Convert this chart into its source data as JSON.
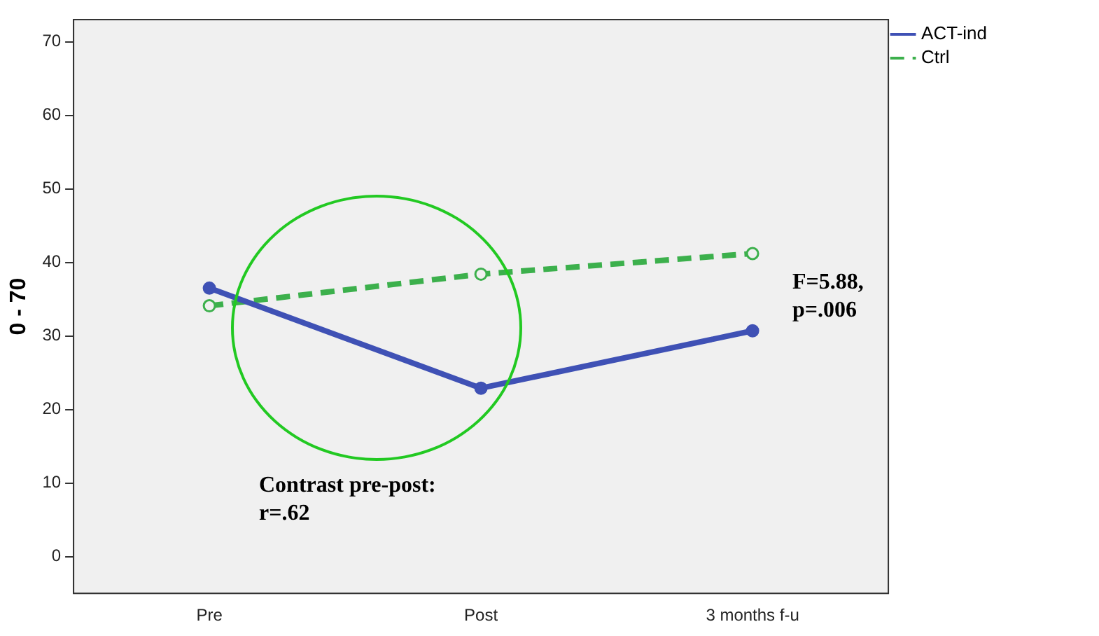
{
  "chart_data": {
    "type": "line",
    "ylabel": "0 - 70",
    "categories": [
      "Pre",
      "Post",
      "3 months f-u"
    ],
    "series": [
      {
        "name": "ACT-ind",
        "color": "#3f51b5",
        "values": [
          36.5,
          22.9,
          30.7
        ],
        "line_style": "solid"
      },
      {
        "name": "Ctrl",
        "color": "#3cb04c",
        "values": [
          34.1,
          38.4,
          41.2
        ],
        "line_style": "dashed"
      }
    ],
    "ylim": [
      -5,
      73
    ],
    "yticks": [
      0,
      10,
      20,
      30,
      40,
      50,
      60,
      70
    ],
    "grid": false,
    "legend": "top right",
    "marker": "circle",
    "annotations": [
      "Contrast pre-post:\nr=.62",
      "F=5.88,\np=.006"
    ]
  }
}
